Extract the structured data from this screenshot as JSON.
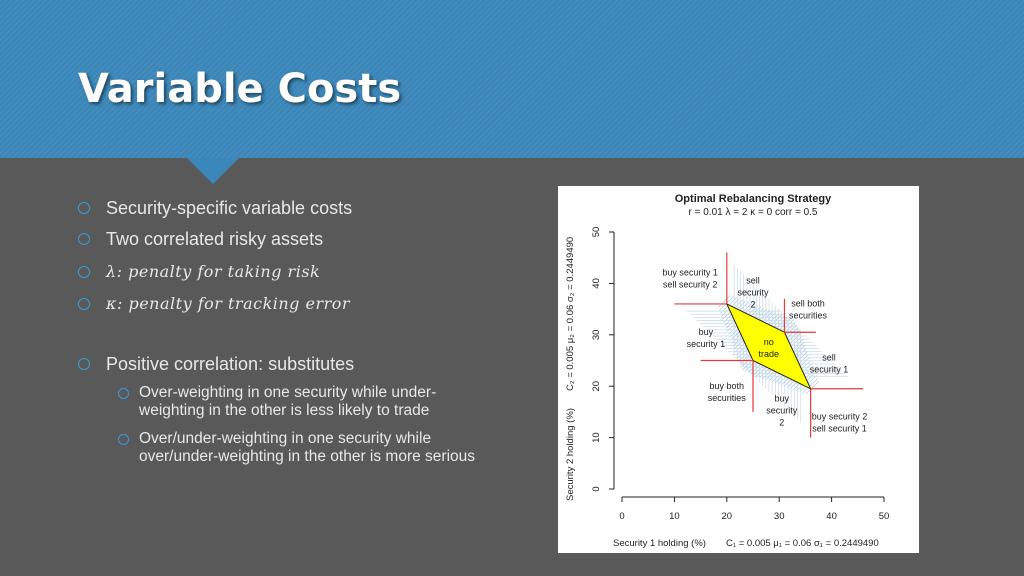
{
  "slide": {
    "title": "Variable Costs",
    "bullets": [
      {
        "text": "Security-specific variable costs"
      },
      {
        "text": "Two correlated risky assets"
      },
      {
        "text": "λ: penalty for taking risk"
      },
      {
        "text": "κ: penalty for tracking error"
      },
      {
        "text": "Positive correlation: substitutes"
      }
    ],
    "sub_bullets": [
      {
        "text": "Over-weighting in one security while under-weighting in the other is less likely to trade"
      },
      {
        "text": "Over/under-weighting in one security while over/under-weighting in the other is more serious"
      }
    ],
    "colors": {
      "accent": "#3b87b9",
      "background": "#595959",
      "bullet_ring": "#3b9bd6"
    }
  },
  "chart_data": {
    "type": "scatter",
    "title": "Optimal Rebalancing Strategy",
    "subtitle": "r = 0.01   λ = 2   κ = 0   corr = 0.5",
    "xlabel": "Security 1 holding (%)",
    "x_params": "C₁ = 0.005   μ₁ = 0.06   σ₁ = 0.2449490",
    "ylabel": "Security 2 holding (%)",
    "y_params": "C₂ = 0.005   μ₂ = 0.06   σ₂ = 0.2449490",
    "xlim": [
      0,
      50
    ],
    "ylim": [
      0,
      50
    ],
    "x_ticks": [
      0,
      10,
      20,
      30,
      40,
      50
    ],
    "y_ticks": [
      0,
      10,
      20,
      30,
      40,
      50
    ],
    "no_trade_region": [
      [
        20,
        36
      ],
      [
        31,
        30.5
      ],
      [
        36,
        19.5
      ],
      [
        25,
        25
      ]
    ],
    "boundary_lines": [
      {
        "x": [
          10,
          20
        ],
        "y": [
          36,
          36
        ]
      },
      {
        "x": [
          20,
          20
        ],
        "y": [
          36,
          46
        ]
      },
      {
        "x": [
          31,
          37
        ],
        "y": [
          30.5,
          30.5
        ]
      },
      {
        "x": [
          31,
          31
        ],
        "y": [
          30.5,
          37
        ]
      },
      {
        "x": [
          15,
          25
        ],
        "y": [
          25,
          25
        ]
      },
      {
        "x": [
          25,
          25
        ],
        "y": [
          25,
          15
        ]
      },
      {
        "x": [
          36,
          46
        ],
        "y": [
          19.5,
          19.5
        ]
      },
      {
        "x": [
          36,
          36
        ],
        "y": [
          19.5,
          10
        ]
      }
    ],
    "region_labels": [
      {
        "text": "buy security 1\nsell security 2",
        "x": 13,
        "y": 41.5
      },
      {
        "text": "sell\nsecurity\n2",
        "x": 25,
        "y": 40
      },
      {
        "text": "sell both\nsecurities",
        "x": 35.5,
        "y": 35.5
      },
      {
        "text": "buy\nsecurity 1",
        "x": 16,
        "y": 30
      },
      {
        "text": "no\ntrade",
        "x": 28,
        "y": 28
      },
      {
        "text": "sell\nsecurity 1",
        "x": 39.5,
        "y": 25
      },
      {
        "text": "buy both\nsecurities",
        "x": 20,
        "y": 19.5
      },
      {
        "text": "buy\nsecurity\n2",
        "x": 30.5,
        "y": 17
      },
      {
        "text": "buy security 2\nsell security 1",
        "x": 41.5,
        "y": 13.5
      }
    ]
  }
}
